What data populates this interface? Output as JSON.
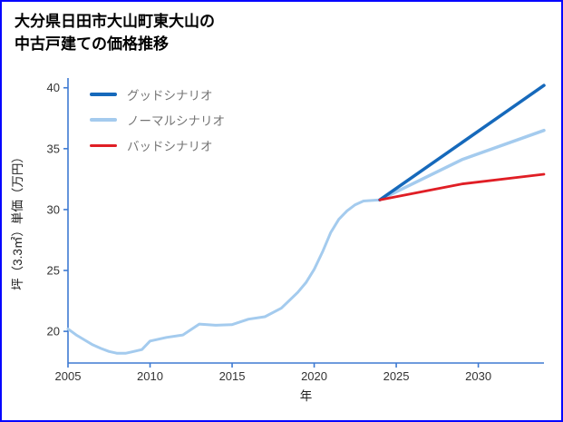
{
  "page": {
    "title_line1": "大分県日田市大山町東大山の",
    "title_line2": "中古戸建ての価格推移",
    "border_color": "#0707ff"
  },
  "chart_data": {
    "type": "line",
    "title": "大分県日田市大山町東大山の中古戸建ての価格推移",
    "xlabel": "年",
    "ylabel": "坪（3.3㎡）単価（万円）",
    "xlim": [
      2005,
      2034
    ],
    "ylim": [
      17.4,
      40.8
    ],
    "xticks": [
      2005,
      2010,
      2015,
      2020,
      2025,
      2030
    ],
    "yticks": [
      20,
      25,
      30,
      35,
      40
    ],
    "axis_color": "#3e7ad2",
    "grid": false,
    "legend_position": "upper-left",
    "history": {
      "color": "#a4cbee",
      "line_width": 3,
      "x": [
        2005,
        2005.5,
        2006,
        2006.5,
        2007,
        2007.5,
        2008,
        2008.5,
        2009,
        2009.5,
        2010,
        2011,
        2012,
        2013,
        2014,
        2015,
        2016,
        2017,
        2018,
        2019,
        2019.5,
        2020,
        2020.5,
        2021,
        2021.5,
        2022,
        2022.5,
        2023,
        2024
      ],
      "y": [
        20.2,
        19.7,
        19.3,
        18.9,
        18.6,
        18.35,
        18.2,
        18.2,
        18.35,
        18.5,
        19.2,
        19.5,
        19.7,
        20.6,
        20.5,
        20.55,
        21.0,
        21.2,
        21.9,
        23.2,
        24.0,
        25.1,
        26.5,
        28.1,
        29.2,
        29.9,
        30.4,
        30.7,
        30.8
      ]
    },
    "series": [
      {
        "name": "グッドシナリオ",
        "color": "#1669bb",
        "line_width": 3.5,
        "x": [
          2024,
          2034
        ],
        "y": [
          30.8,
          40.2
        ]
      },
      {
        "name": "ノーマルシナリオ",
        "color": "#a4cbee",
        "line_width": 3.5,
        "x": [
          2024,
          2029,
          2034
        ],
        "y": [
          30.8,
          34.1,
          36.5
        ]
      },
      {
        "name": "バッドシナリオ",
        "color": "#e01e25",
        "line_width": 2.8,
        "x": [
          2024,
          2029,
          2034
        ],
        "y": [
          30.8,
          32.1,
          32.9
        ]
      }
    ]
  }
}
